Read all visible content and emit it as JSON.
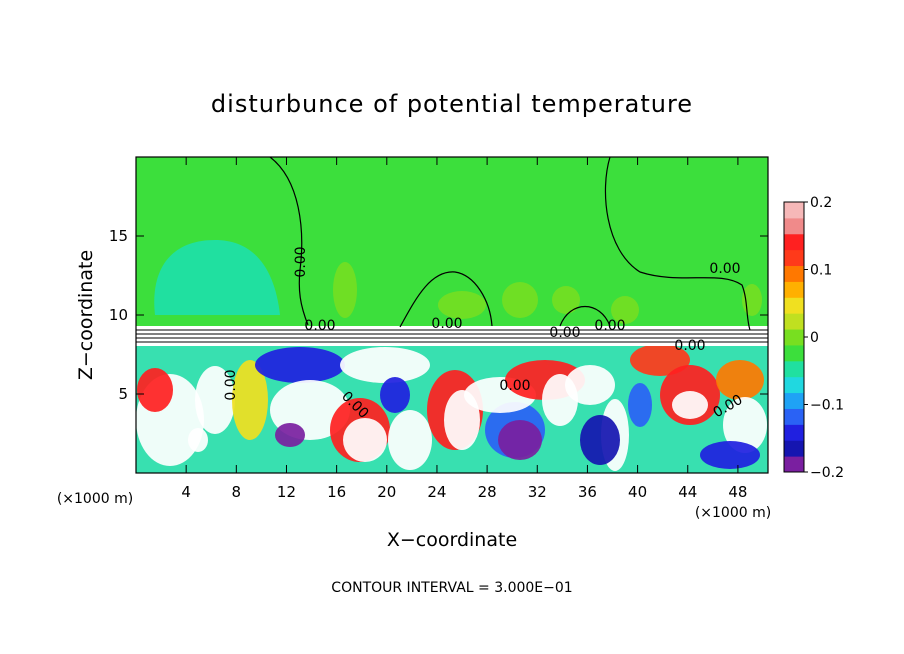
{
  "chart_data": {
    "type": "heatmap",
    "title": "disturbunce of potential temperature",
    "xlabel": "X−coordinate",
    "ylabel": "Z−coordinate",
    "x_unit_left": "(×1000 m)",
    "x_unit_right": "(×1000 m)",
    "xlim": [
      0,
      50.4
    ],
    "ylim": [
      0,
      20
    ],
    "x_ticks": [
      4,
      8,
      12,
      16,
      20,
      24,
      28,
      32,
      36,
      40,
      44,
      48
    ],
    "y_ticks": [
      5,
      10,
      15
    ],
    "colorbar": {
      "range": [
        -0.2,
        0.2
      ],
      "tick_values": [
        0.2,
        0.1,
        0,
        -0.1,
        -0.2
      ],
      "tick_labels": [
        "0.2",
        "0.1",
        "0",
        "−0.1",
        "−0.2"
      ],
      "colors": [
        "#7a1fa0",
        "#1515b0",
        "#2020e0",
        "#2a62f5",
        "#1fa2f5",
        "#20d8e0",
        "#20e0a0",
        "#3cdf3c",
        "#78df20",
        "#c0e020",
        "#f0e020",
        "#ffb000",
        "#ff7800",
        "#ff3a1a",
        "#ff2020",
        "#f08a8a",
        "#f6b8b8"
      ]
    },
    "contour_labels": [
      "0.00",
      "0.00",
      "0.00",
      "0.00",
      "0.00",
      "0.00",
      "0.00",
      "0.00",
      "0.00",
      "0.00",
      "0.00"
    ],
    "footer": "CONTOUR INTERVAL = 3.000E−01"
  }
}
